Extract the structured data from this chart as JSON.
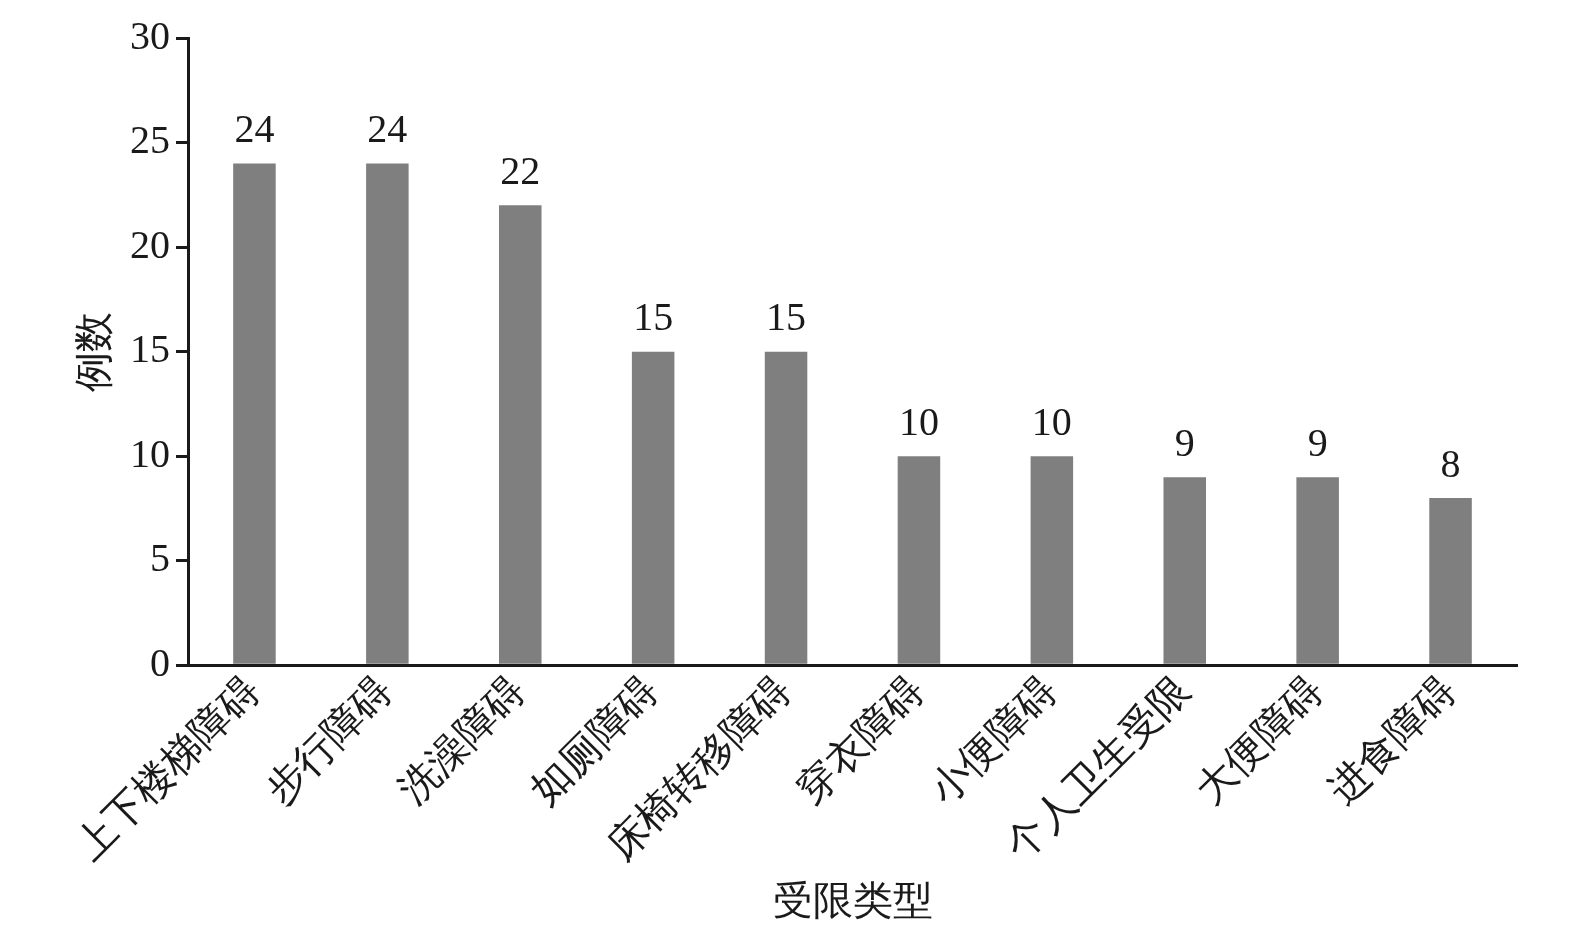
{
  "chart_data": {
    "type": "bar",
    "categories": [
      "上下楼梯障碍",
      "步行障碍",
      "洗澡障碍",
      "如厕障碍",
      "床椅转移障碍",
      "穿衣障碍",
      "小便障碍",
      "个人卫生受限",
      "大便障碍",
      "进食障碍"
    ],
    "values": [
      24,
      24,
      22,
      15,
      15,
      10,
      10,
      9,
      9,
      8
    ],
    "color": "#7f7f7f",
    "xlabel": "受限类型",
    "ylabel": "例数",
    "ylim": [
      0,
      30
    ],
    "yticks": [
      0,
      5,
      10,
      15,
      20,
      25,
      30
    ],
    "data_labels": true,
    "grid": false,
    "legend": false
  }
}
